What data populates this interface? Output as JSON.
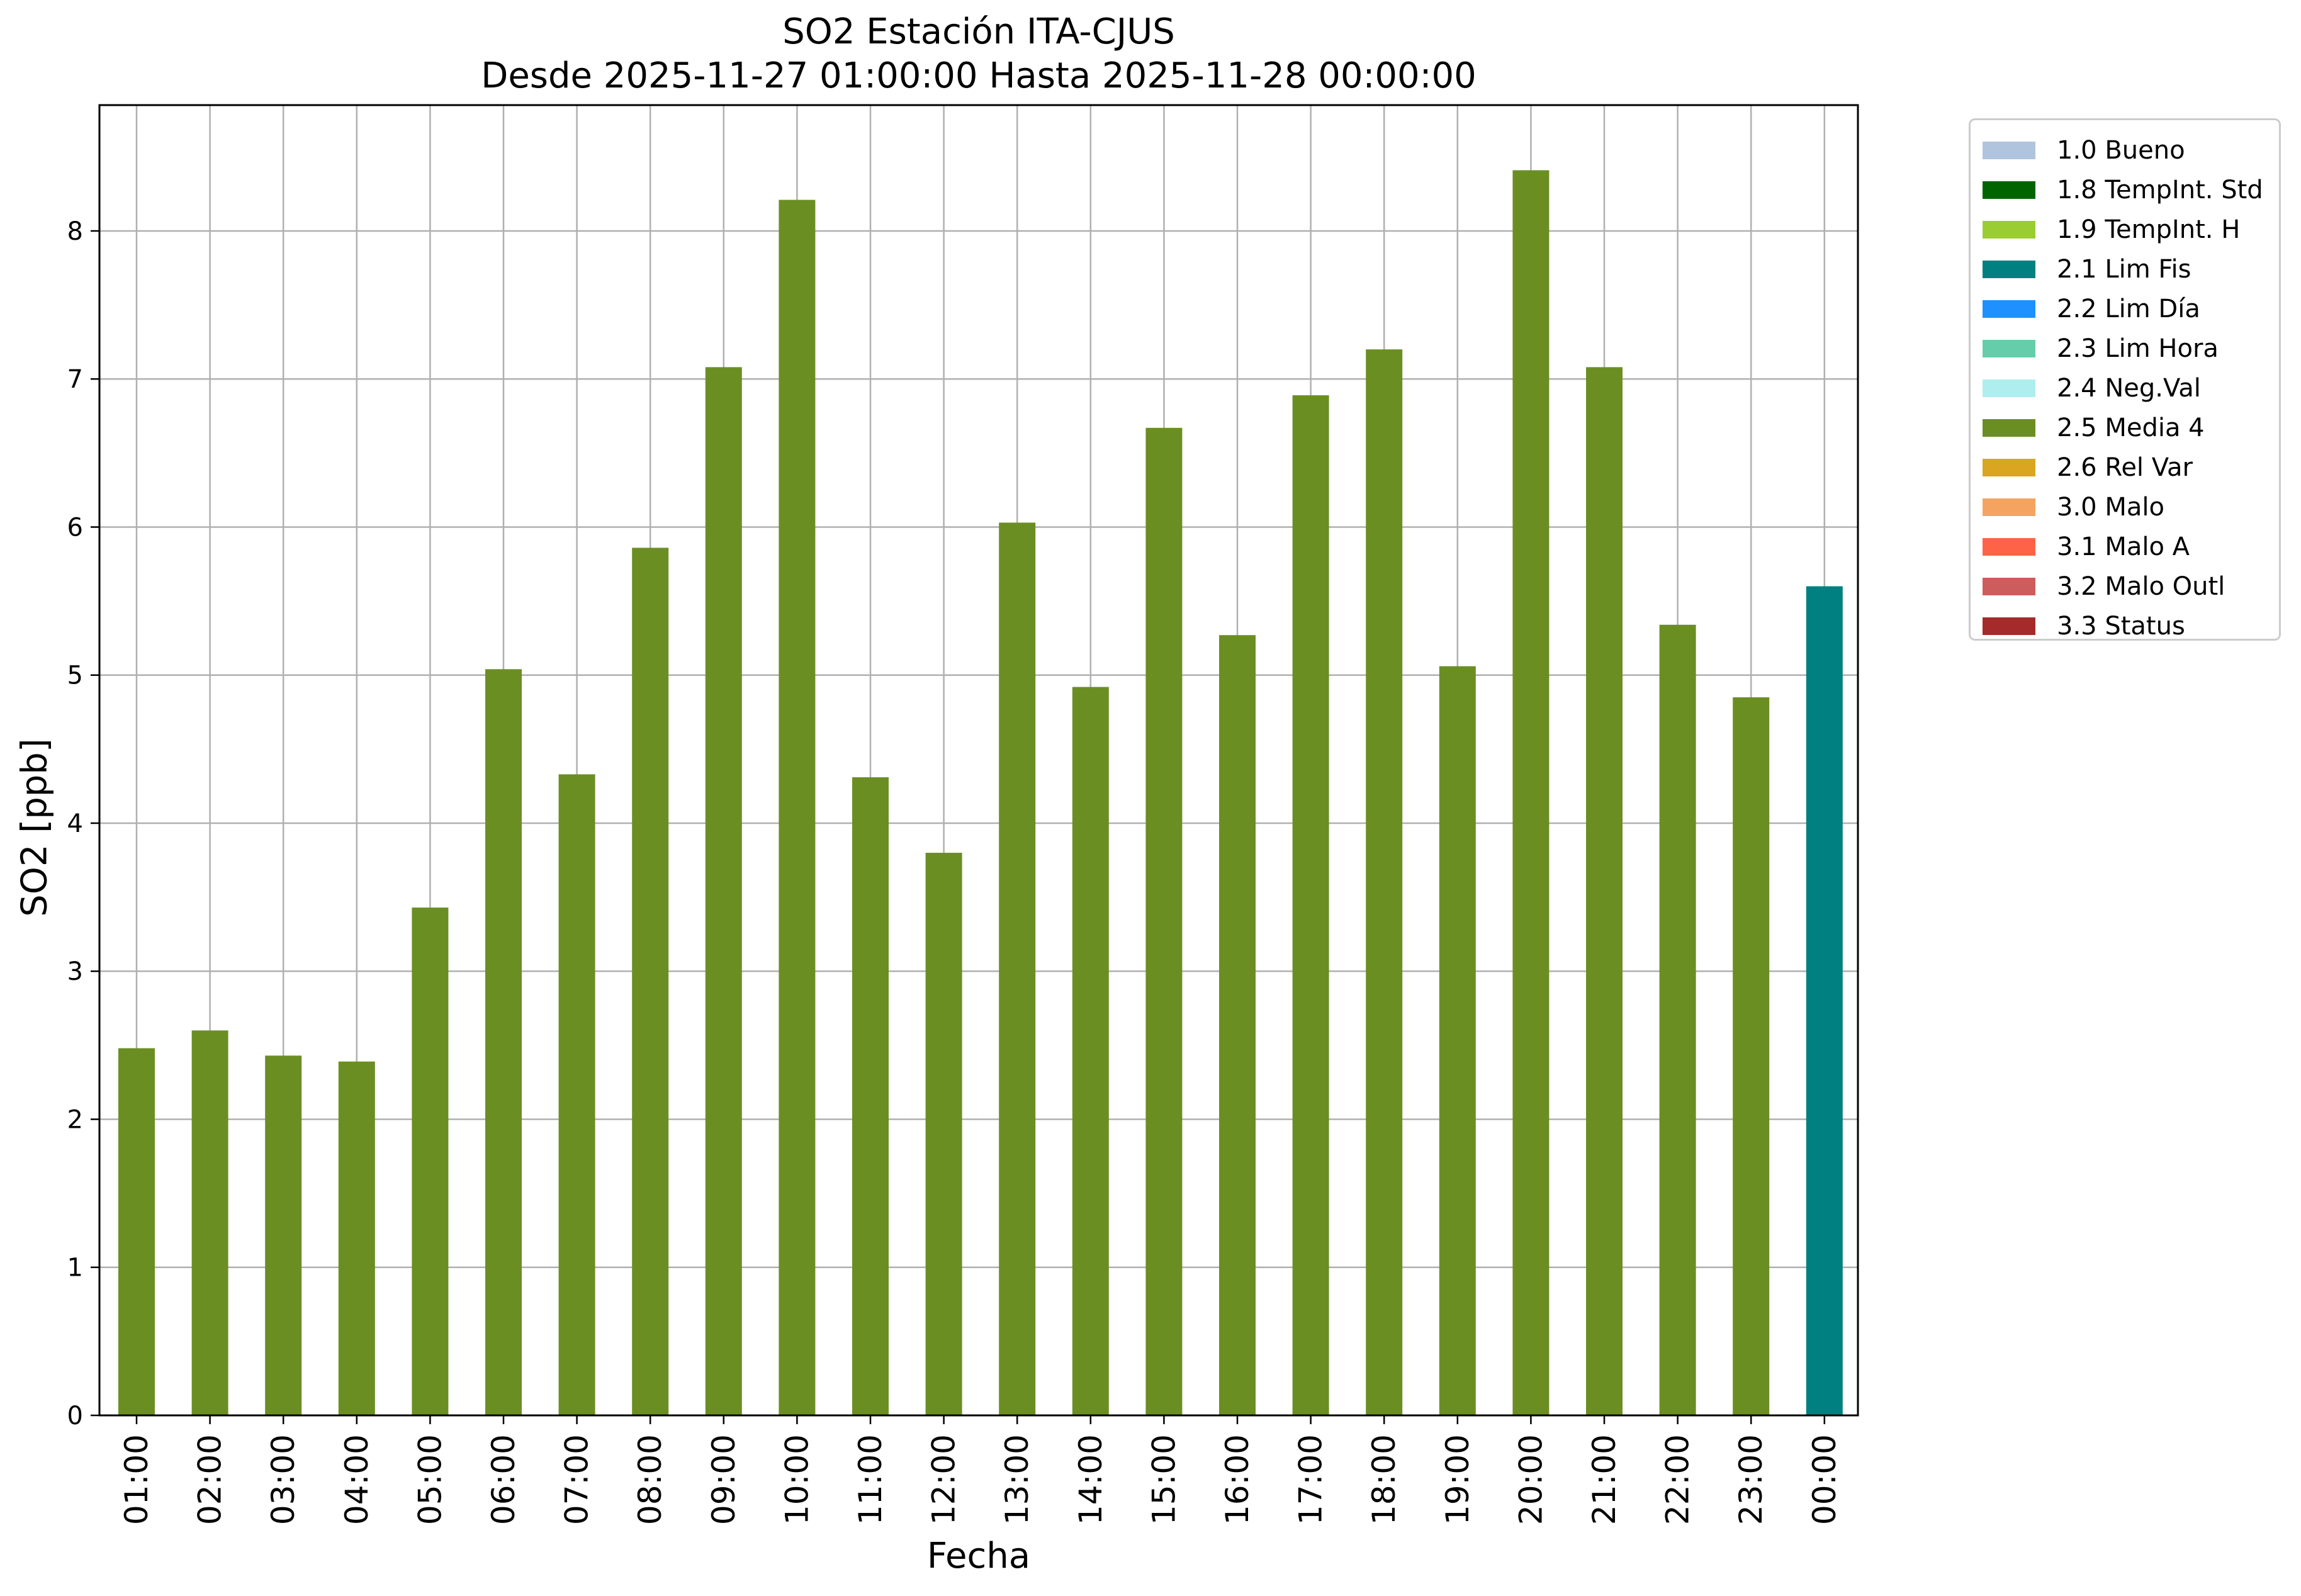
{
  "chart_data": {
    "type": "bar",
    "title": "SO2 Estación ITA-CJUS",
    "subtitle": "Desde 2025-11-27 01:00:00 Hasta 2025-11-28 00:00:00",
    "xlabel": "Fecha",
    "ylabel": "SO2 [ppb]",
    "ylim": [
      0,
      8.85
    ],
    "yticks": [
      0,
      1,
      2,
      3,
      4,
      5,
      6,
      7,
      8
    ],
    "grid": true,
    "legend_position": "outside-right",
    "categories": [
      "01:00",
      "02:00",
      "03:00",
      "04:00",
      "05:00",
      "06:00",
      "07:00",
      "08:00",
      "09:00",
      "10:00",
      "11:00",
      "12:00",
      "13:00",
      "14:00",
      "15:00",
      "16:00",
      "17:00",
      "18:00",
      "19:00",
      "20:00",
      "21:00",
      "22:00",
      "23:00",
      "00:00"
    ],
    "values": [
      2.48,
      2.6,
      2.43,
      2.39,
      3.43,
      5.04,
      4.33,
      5.86,
      7.08,
      8.21,
      4.31,
      3.8,
      6.03,
      4.92,
      6.67,
      5.27,
      6.89,
      7.2,
      5.06,
      8.41,
      7.08,
      5.34,
      4.85,
      5.6
    ],
    "bar_flags": [
      "2.5 Media 4",
      "2.5 Media 4",
      "2.5 Media 4",
      "2.5 Media 4",
      "2.5 Media 4",
      "2.5 Media 4",
      "2.5 Media 4",
      "2.5 Media 4",
      "2.5 Media 4",
      "2.5 Media 4",
      "2.5 Media 4",
      "2.5 Media 4",
      "2.5 Media 4",
      "2.5 Media 4",
      "2.5 Media 4",
      "2.5 Media 4",
      "2.5 Media 4",
      "2.5 Media 4",
      "2.5 Media 4",
      "2.5 Media 4",
      "2.5 Media 4",
      "2.5 Media 4",
      "2.5 Media 4",
      "2.1 Lim Fis"
    ],
    "legend": [
      {
        "label": "1.0 Bueno",
        "color": "#b0c4de"
      },
      {
        "label": "1.8 TempInt. Std",
        "color": "#006400"
      },
      {
        "label": "1.9 TempInt. H",
        "color": "#9acd32"
      },
      {
        "label": "2.1 Lim Fis",
        "color": "#008080"
      },
      {
        "label": "2.2 Lim Día",
        "color": "#1e90ff"
      },
      {
        "label": "2.3 Lim Hora",
        "color": "#66cdaa"
      },
      {
        "label": "2.4 Neg.Val",
        "color": "#afeeee"
      },
      {
        "label": "2.5 Media 4",
        "color": "#6b8e23"
      },
      {
        "label": "2.6 Rel Var",
        "color": "#daa520"
      },
      {
        "label": "3.0 Malo",
        "color": "#f4a460"
      },
      {
        "label": "3.1 Malo A",
        "color": "#ff6347"
      },
      {
        "label": "3.2 Malo Outl",
        "color": "#cd5c5c"
      },
      {
        "label": "3.3 Status",
        "color": "#a52a2a"
      }
    ]
  }
}
